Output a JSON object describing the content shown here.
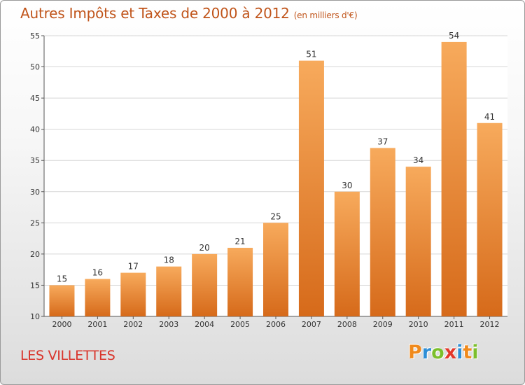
{
  "chart_data": {
    "type": "bar",
    "title": "Autres Impôts et Taxes de 2000 à 2012",
    "subtitle": "(en milliers d'€)",
    "categories": [
      "2000",
      "2001",
      "2002",
      "2003",
      "2004",
      "2005",
      "2006",
      "2007",
      "2008",
      "2009",
      "2010",
      "2011",
      "2012"
    ],
    "values": [
      15,
      16,
      17,
      18,
      20,
      21,
      25,
      51,
      30,
      37,
      34,
      54,
      41
    ],
    "ylim": [
      10,
      55
    ],
    "yticks": [
      10,
      15,
      20,
      25,
      30,
      35,
      40,
      45,
      50,
      55
    ],
    "xlabel": "",
    "ylabel": "",
    "grid": true,
    "bar_color": "#f0923a",
    "bar_color_light": "#f7aa5c",
    "bar_color_dark": "#d66a1a"
  },
  "footer": {
    "place": "LES VILLETTES",
    "logo": {
      "text": "Proxiti",
      "letters": [
        {
          "ch": "P",
          "color": "#f08a1c"
        },
        {
          "ch": "r",
          "color": "#2f8fd6"
        },
        {
          "ch": "o",
          "color": "#7cbf2c"
        },
        {
          "ch": "x",
          "color": "#e4382a"
        },
        {
          "ch": "i",
          "color": "#2f8fd6"
        },
        {
          "ch": "t",
          "color": "#f08a1c"
        },
        {
          "ch": "i",
          "color": "#7cbf2c"
        }
      ]
    }
  }
}
